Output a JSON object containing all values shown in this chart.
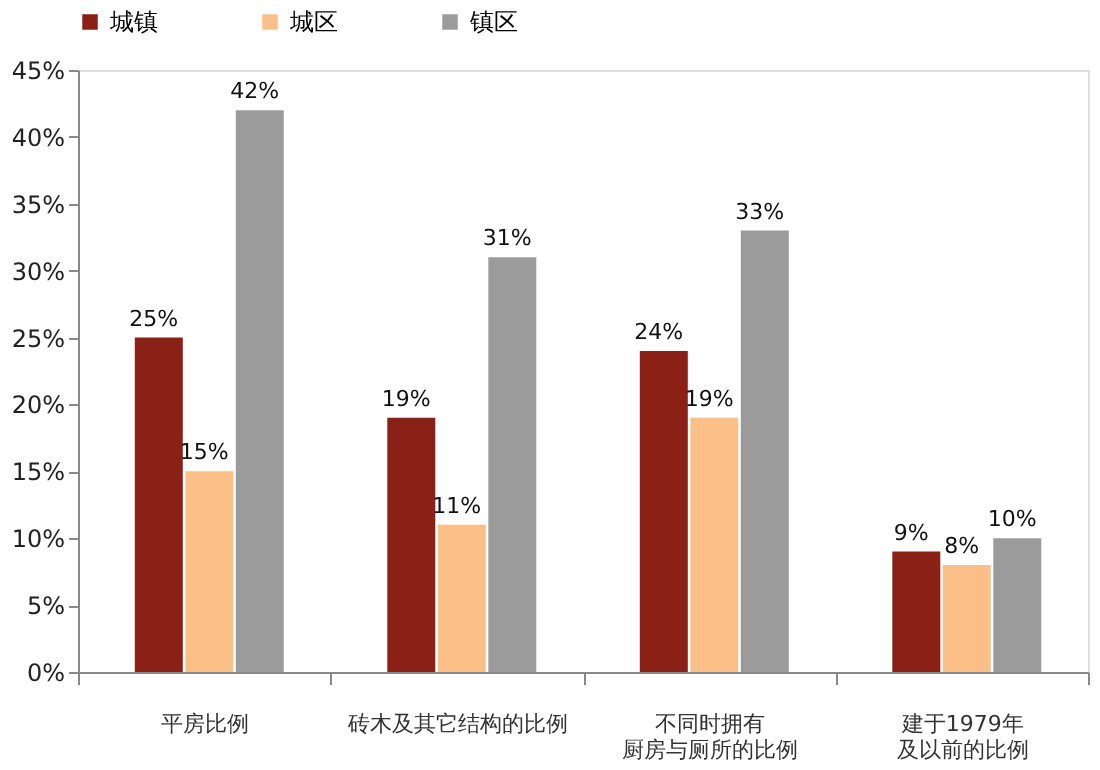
{
  "chart_data": {
    "type": "bar",
    "categories": [
      "平房比例",
      "砖木及其它结构的比例",
      "不同时拥有厨房与厕所的比例",
      "建于1979年及以前的比例"
    ],
    "series": [
      {
        "name": "城镇",
        "color": "#8b2116",
        "values": [
          25,
          19,
          24,
          9
        ],
        "value_labels": [
          "25%",
          "19%",
          "24%",
          "9%"
        ]
      },
      {
        "name": "城区",
        "color": "#fbbf87",
        "values": [
          15,
          11,
          19,
          8
        ],
        "value_labels": [
          "15%",
          "11%",
          "19%",
          "8%"
        ]
      },
      {
        "name": "镇区",
        "color": "#9b9b9b",
        "values": [
          42,
          31,
          33,
          10
        ],
        "value_labels": [
          "42%",
          "31%",
          "33%",
          "10%"
        ]
      }
    ],
    "ylim": [
      0,
      45
    ],
    "yticks": [
      {
        "value": 0,
        "label": "0%"
      },
      {
        "value": 5,
        "label": "5%"
      },
      {
        "value": 10,
        "label": "10%"
      },
      {
        "value": 15,
        "label": "15%"
      },
      {
        "value": 20,
        "label": "20%"
      },
      {
        "value": 25,
        "label": "25%"
      },
      {
        "value": 30,
        "label": "30%"
      },
      {
        "value": 35,
        "label": "35%"
      },
      {
        "value": 40,
        "label": "40%"
      },
      {
        "value": 45,
        "label": "45%"
      }
    ],
    "grid": false,
    "legend": "top"
  }
}
